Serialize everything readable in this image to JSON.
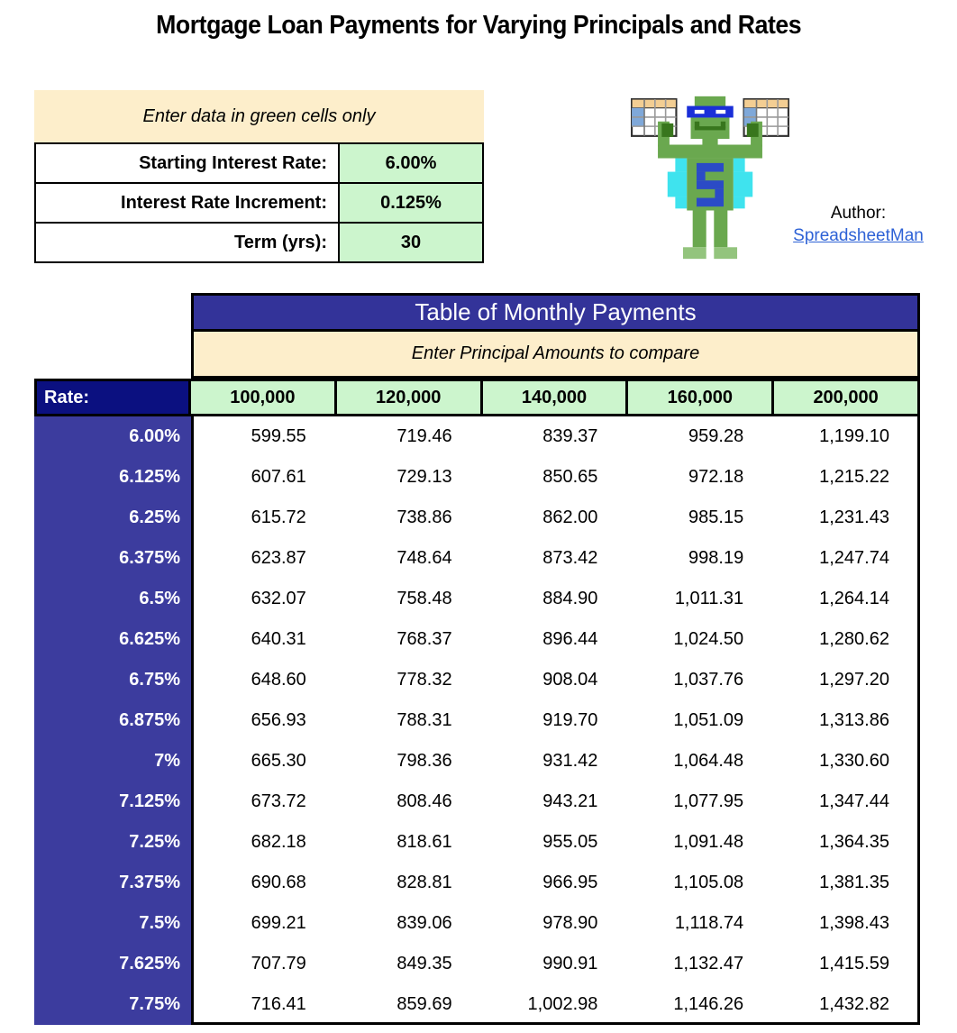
{
  "page_title": "Mortgage Loan Payments for Varying Principals and Rates",
  "input_panel": {
    "banner": "Enter data in green cells only",
    "fields": [
      {
        "label": "Starting Interest Rate:",
        "value": "6.00%"
      },
      {
        "label": "Interest Rate Increment:",
        "value": "0.125%"
      },
      {
        "label": "Term (yrs):",
        "value": "30"
      }
    ]
  },
  "author": {
    "label": "Author:",
    "name": "SpreadsheetMan"
  },
  "payments_table": {
    "title": "Table of Monthly Payments",
    "subtitle": "Enter Principal Amounts to compare",
    "rate_header": "Rate:",
    "principals": [
      "100,000",
      "120,000",
      "140,000",
      "160,000",
      "200,000"
    ],
    "rows": [
      {
        "rate": "6.00%",
        "values": [
          "599.55",
          "719.46",
          "839.37",
          "959.28",
          "1,199.10"
        ]
      },
      {
        "rate": "6.125%",
        "values": [
          "607.61",
          "729.13",
          "850.65",
          "972.18",
          "1,215.22"
        ]
      },
      {
        "rate": "6.25%",
        "values": [
          "615.72",
          "738.86",
          "862.00",
          "985.15",
          "1,231.43"
        ]
      },
      {
        "rate": "6.375%",
        "values": [
          "623.87",
          "748.64",
          "873.42",
          "998.19",
          "1,247.74"
        ]
      },
      {
        "rate": "6.5%",
        "values": [
          "632.07",
          "758.48",
          "884.90",
          "1,011.31",
          "1,264.14"
        ]
      },
      {
        "rate": "6.625%",
        "values": [
          "640.31",
          "768.37",
          "896.44",
          "1,024.50",
          "1,280.62"
        ]
      },
      {
        "rate": "6.75%",
        "values": [
          "648.60",
          "778.32",
          "908.04",
          "1,037.76",
          "1,297.20"
        ]
      },
      {
        "rate": "6.875%",
        "values": [
          "656.93",
          "788.31",
          "919.70",
          "1,051.09",
          "1,313.86"
        ]
      },
      {
        "rate": "7%",
        "values": [
          "665.30",
          "798.36",
          "931.42",
          "1,064.48",
          "1,330.60"
        ]
      },
      {
        "rate": "7.125%",
        "values": [
          "673.72",
          "808.46",
          "943.21",
          "1,077.95",
          "1,347.44"
        ]
      },
      {
        "rate": "7.25%",
        "values": [
          "682.18",
          "818.61",
          "955.05",
          "1,091.48",
          "1,364.35"
        ]
      },
      {
        "rate": "7.375%",
        "values": [
          "690.68",
          "828.81",
          "966.95",
          "1,105.08",
          "1,381.35"
        ]
      },
      {
        "rate": "7.5%",
        "values": [
          "699.21",
          "839.06",
          "978.90",
          "1,118.74",
          "1,398.43"
        ]
      },
      {
        "rate": "7.625%",
        "values": [
          "707.79",
          "849.35",
          "990.91",
          "1,132.47",
          "1,415.59"
        ]
      },
      {
        "rate": "7.75%",
        "values": [
          "716.41",
          "859.69",
          "1,002.98",
          "1,146.26",
          "1,432.82"
        ]
      }
    ]
  },
  "colors": {
    "header-blue": "#333399",
    "rate-column-blue": "#3C3C9E",
    "rate-header-navy": "#0B1080",
    "input-green": "#CCF5CD",
    "banner-cream": "#FDEECB",
    "link-blue": "#2E62D6",
    "border-black": "#000000"
  }
}
